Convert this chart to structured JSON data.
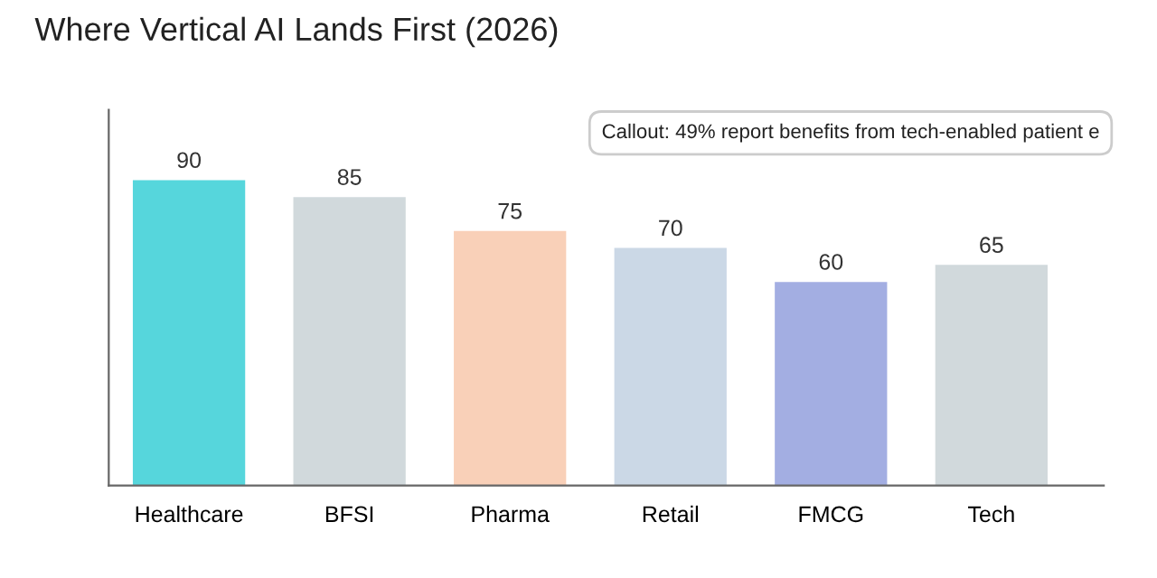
{
  "chart_data": {
    "type": "bar",
    "title": "Where Vertical AI Lands First (2026)",
    "categories": [
      "Healthcare",
      "BFSI",
      "Pharma",
      "Retail",
      "FMCG",
      "Tech"
    ],
    "values": [
      90,
      85,
      75,
      70,
      60,
      65
    ],
    "colors": [
      "#56d6dc",
      "#d1d9dc",
      "#f9d0b8",
      "#cbd8e6",
      "#a3aee2",
      "#d1d9dc"
    ],
    "data_labels": true,
    "tick_labels": "x",
    "grid": false,
    "annotations": [
      "Callout: 49% report benefits from tech-enabled patient e"
    ]
  }
}
